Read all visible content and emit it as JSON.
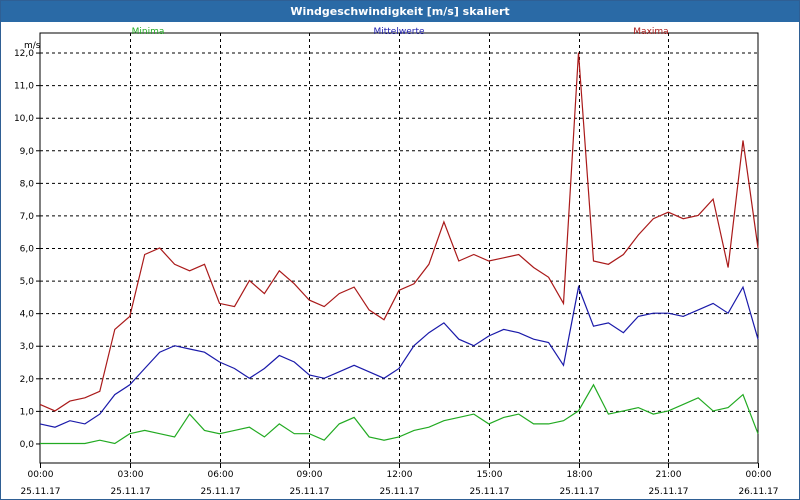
{
  "window": {
    "title": "Windgeschwindigkeit [m/s] skaliert"
  },
  "chart_data": {
    "type": "line",
    "title": "Windgeschwindigkeit [m/s] skaliert",
    "ylabel": "m/s",
    "xlabel": "",
    "ylim": [
      -0.6,
      12.6
    ],
    "xlim": [
      0,
      24
    ],
    "grid": true,
    "legend_placement": "top",
    "y_ticks": [
      "0,0",
      "1,0",
      "2,0",
      "3,0",
      "4,0",
      "5,0",
      "6,0",
      "7,0",
      "8,0",
      "9,0",
      "10,0",
      "11,0",
      "12,0"
    ],
    "x_ticks": [
      {
        "time": "00:00",
        "date": "25.11.17"
      },
      {
        "time": "03:00",
        "date": "25.11.17"
      },
      {
        "time": "06:00",
        "date": "25.11.17"
      },
      {
        "time": "09:00",
        "date": "25.11.17"
      },
      {
        "time": "12:00",
        "date": "25.11.17"
      },
      {
        "time": "15:00",
        "date": "25.11.17"
      },
      {
        "time": "18:00",
        "date": "25.11.17"
      },
      {
        "time": "21:00",
        "date": "25.11.17"
      },
      {
        "time": "00:00",
        "date": "26.11.17"
      }
    ],
    "x_hours": [
      0,
      0.5,
      1,
      1.5,
      2,
      2.5,
      3,
      3.5,
      4,
      4.5,
      5,
      5.5,
      6,
      6.5,
      7,
      7.5,
      8,
      8.5,
      9,
      9.5,
      10,
      10.5,
      11,
      11.5,
      12,
      12.5,
      13,
      13.5,
      14,
      14.5,
      15,
      15.5,
      16,
      16.5,
      17,
      17.5,
      18,
      18.5,
      19,
      19.5,
      20,
      20.5,
      21,
      21.5,
      22,
      22.5,
      23,
      23.5,
      24
    ],
    "series": [
      {
        "name": "Minima",
        "color": "#22aa22",
        "values": [
          0.0,
          0.0,
          0.0,
          0.0,
          0.1,
          0.0,
          0.3,
          0.4,
          0.3,
          0.2,
          0.9,
          0.4,
          0.3,
          0.4,
          0.5,
          0.2,
          0.6,
          0.3,
          0.3,
          0.1,
          0.6,
          0.8,
          0.2,
          0.1,
          0.2,
          0.4,
          0.5,
          0.7,
          0.8,
          0.9,
          0.6,
          0.8,
          0.9,
          0.6,
          0.6,
          0.7,
          1.0,
          1.8,
          0.9,
          1.0,
          1.1,
          0.9,
          1.0,
          1.2,
          1.4,
          1.0,
          1.1,
          1.5,
          0.3
        ]
      },
      {
        "name": "Mittelwerte",
        "color": "#1a1aaa",
        "values": [
          0.6,
          0.5,
          0.7,
          0.6,
          0.9,
          1.5,
          1.8,
          2.3,
          2.8,
          3.0,
          2.9,
          2.8,
          2.5,
          2.3,
          2.0,
          2.3,
          2.7,
          2.5,
          2.1,
          2.0,
          2.2,
          2.4,
          2.2,
          2.0,
          2.3,
          3.0,
          3.4,
          3.7,
          3.2,
          3.0,
          3.3,
          3.5,
          3.4,
          3.2,
          3.1,
          2.4,
          4.8,
          3.6,
          3.7,
          3.4,
          3.9,
          4.0,
          4.0,
          3.9,
          4.1,
          4.3,
          4.0,
          4.8,
          3.2
        ]
      },
      {
        "name": "Maxima",
        "color": "#aa1a1a",
        "values": [
          1.2,
          1.0,
          1.3,
          1.4,
          1.6,
          3.5,
          3.9,
          5.8,
          6.0,
          5.5,
          5.3,
          5.5,
          4.3,
          4.2,
          5.0,
          4.6,
          5.3,
          4.9,
          4.4,
          4.2,
          4.6,
          4.8,
          4.1,
          3.8,
          4.7,
          4.9,
          5.5,
          6.8,
          5.6,
          5.8,
          5.6,
          5.7,
          5.8,
          5.4,
          5.1,
          4.3,
          12.0,
          5.6,
          5.5,
          5.8,
          6.4,
          6.9,
          7.1,
          6.9,
          7.0,
          7.5,
          5.4,
          9.3,
          6.0
        ]
      }
    ]
  }
}
